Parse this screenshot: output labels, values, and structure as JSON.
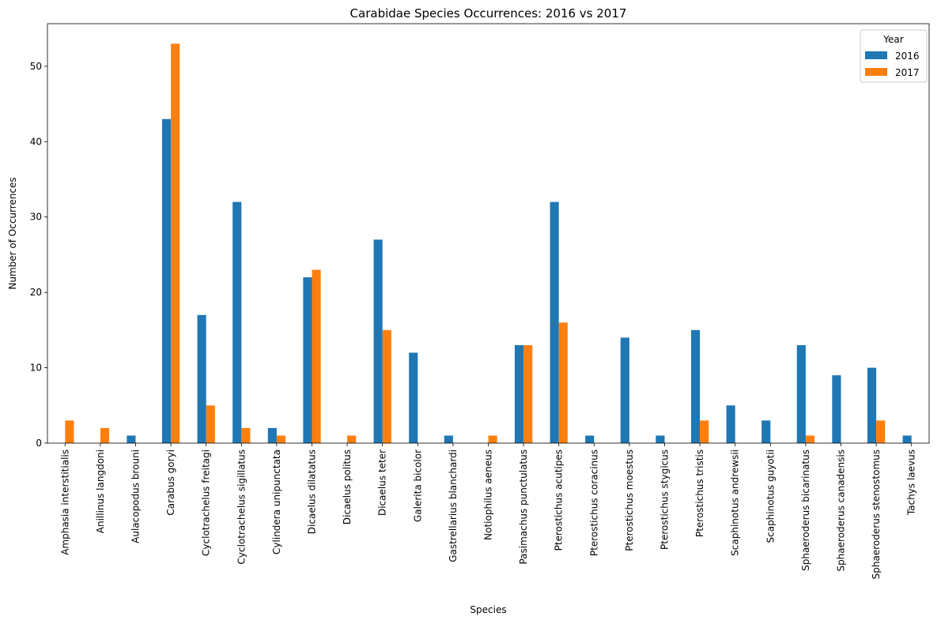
{
  "chart_data": {
    "type": "bar",
    "title": "Carabidae Species Occurrences: 2016 vs 2017",
    "xlabel": "Species",
    "ylabel": "Number of Occurrences",
    "ylim": [
      0,
      55.65
    ],
    "yticks": [
      0,
      10,
      20,
      30,
      40,
      50
    ],
    "grid": false,
    "legend": {
      "title": "Year",
      "placement": "top-right"
    },
    "categories": [
      "Amphasia interstitialis",
      "Anillinus langdoni",
      "Aulacopodus brouni",
      "Carabus goryi",
      "Cyclotrachelus freitagi",
      "Cyclotrachelus sigillatus",
      "Cylindera unipunctata",
      "Dicaelus dilatatus",
      "Dicaelus politus",
      "Dicaelus teter",
      "Galerita bicolor",
      "Gastrellarius blanchardi",
      "Notiophilus aeneus",
      "Pasimachus punctulatus",
      "Pterostichus acutipes",
      "Pterostichus coracinus",
      "Pterostichus moestus",
      "Pterostichus stygicus",
      "Pterostichus tristis",
      "Scaphinotus andrewsii",
      "Scaphinotus guyotii",
      "Sphaeroderus bicarinatus",
      "Sphaeroderus canadensis",
      "Sphaeroderus stenostomus",
      "Tachys laevus"
    ],
    "series": [
      {
        "name": "2016",
        "color": "#1f77b4",
        "values": [
          0,
          0,
          1,
          43,
          17,
          32,
          2,
          22,
          0,
          27,
          12,
          1,
          0,
          13,
          32,
          1,
          14,
          1,
          15,
          5,
          3,
          13,
          9,
          10,
          1
        ]
      },
      {
        "name": "2017",
        "color": "#ff7f0e",
        "values": [
          3,
          2,
          0,
          53,
          5,
          2,
          1,
          23,
          1,
          15,
          0,
          0,
          1,
          13,
          16,
          0,
          0,
          0,
          3,
          0,
          0,
          1,
          0,
          3,
          0
        ]
      }
    ]
  }
}
